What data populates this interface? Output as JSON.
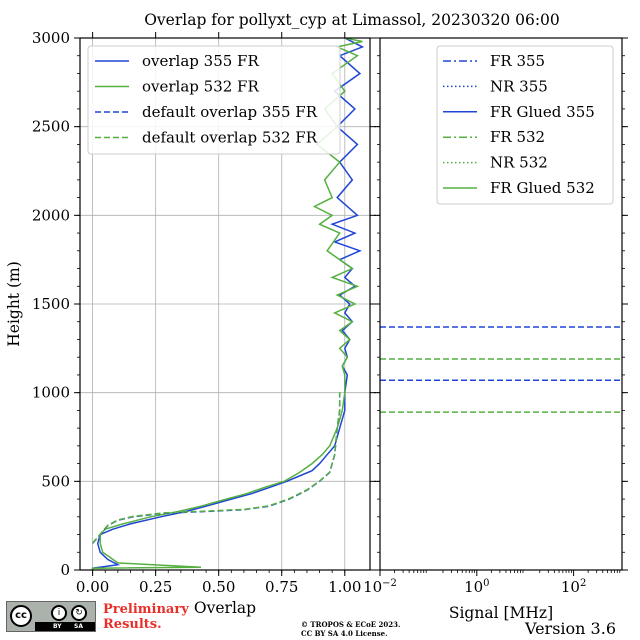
{
  "chart_data": [
    {
      "type": "line",
      "title": "Overlap for pollyxt_cyp at Limassol, 20230320 06:00",
      "xlabel": "Overlap",
      "ylabel": "Height (m)",
      "xlim": [
        -0.05,
        1.1
      ],
      "ylim": [
        0,
        3000
      ],
      "xticks": [
        "0.00",
        "0.25",
        "0.50",
        "0.75",
        "1.00"
      ],
      "yticks": [
        "0",
        "500",
        "1000",
        "1500",
        "2000",
        "2500",
        "3000"
      ],
      "grid": true,
      "legend_position": "top-left",
      "series": [
        {
          "name": "overlap 355 FR",
          "color": "#1f45d6",
          "style": "solid",
          "x": [
            0.0,
            0.0,
            0.05,
            0.1,
            0.06,
            0.03,
            0.02,
            0.03,
            0.08,
            0.15,
            0.27,
            0.37,
            0.45,
            0.55,
            0.63,
            0.71,
            0.77,
            0.82,
            0.87,
            0.9,
            0.93,
            0.96,
            0.98,
            1.0,
            1.0,
            1.01,
            0.99,
            1.01,
            1.0,
            1.02,
            0.99,
            1.03,
            1.0,
            1.02,
            0.98,
            1.04,
            1.0,
            1.03,
            0.98,
            1.06,
            0.96,
            1.04,
            0.95,
            1.05,
            0.97,
            1.03,
            0.98,
            1.05,
            0.97,
            1.04,
            0.96,
            1.06,
            0.98,
            1.07,
            1.0
          ],
          "y": [
            0,
            10,
            20,
            30,
            60,
            100,
            150,
            200,
            230,
            260,
            300,
            330,
            360,
            400,
            430,
            470,
            500,
            530,
            560,
            600,
            650,
            700,
            800,
            900,
            1000,
            1100,
            1150,
            1200,
            1250,
            1300,
            1350,
            1400,
            1450,
            1500,
            1550,
            1600,
            1650,
            1700,
            1750,
            1800,
            1850,
            1900,
            1950,
            2000,
            2100,
            2200,
            2300,
            2400,
            2500,
            2600,
            2700,
            2800,
            2900,
            2950,
            3000
          ]
        },
        {
          "name": "overlap 532 FR",
          "color": "#55b040",
          "style": "solid",
          "x": [
            0.0,
            0.0,
            0.43,
            0.1,
            0.04,
            0.03,
            0.03,
            0.05,
            0.12,
            0.23,
            0.34,
            0.43,
            0.53,
            0.61,
            0.69,
            0.76,
            0.82,
            0.87,
            0.91,
            0.94,
            0.97,
            0.99,
            1.0,
            1.0,
            0.99,
            1.01,
            0.98,
            1.02,
            0.98,
            1.03,
            0.96,
            1.04,
            0.97,
            1.05,
            0.95,
            1.03,
            0.93,
            0.98,
            0.9,
            0.95,
            0.88,
            0.95,
            0.92,
            0.98,
            0.89,
            0.97,
            0.92,
            1.0,
            0.95,
            1.05,
            0.97,
            1.07,
            1.0
          ],
          "y": [
            0,
            10,
            15,
            40,
            100,
            150,
            200,
            230,
            260,
            300,
            330,
            360,
            400,
            430,
            470,
            500,
            550,
            600,
            650,
            700,
            800,
            900,
            1000,
            1100,
            1150,
            1200,
            1250,
            1300,
            1350,
            1400,
            1450,
            1500,
            1550,
            1600,
            1650,
            1700,
            1800,
            1900,
            1950,
            2000,
            2050,
            2100,
            2200,
            2300,
            2400,
            2500,
            2600,
            2700,
            2800,
            2900,
            2950,
            2980,
            3000
          ]
        },
        {
          "name": "default overlap 355 FR",
          "color": "#1f45d6",
          "style": "dashed",
          "x": [
            0.0,
            0.03,
            0.06,
            0.1,
            0.16,
            0.28,
            0.45,
            0.6,
            0.7,
            0.78,
            0.85,
            0.9,
            0.94,
            0.96,
            0.97,
            0.98,
            0.98
          ],
          "y": [
            150,
            200,
            250,
            280,
            300,
            320,
            330,
            340,
            360,
            400,
            450,
            500,
            550,
            650,
            800,
            900,
            1000
          ]
        },
        {
          "name": "default overlap 532 FR",
          "color": "#55b040",
          "style": "dashed",
          "x": [
            0.0,
            0.03,
            0.06,
            0.1,
            0.16,
            0.28,
            0.45,
            0.6,
            0.7,
            0.78,
            0.85,
            0.9,
            0.94,
            0.96,
            0.97,
            0.98,
            0.98
          ],
          "y": [
            152,
            202,
            252,
            282,
            302,
            322,
            332,
            342,
            362,
            402,
            452,
            502,
            552,
            652,
            802,
            902,
            1002
          ]
        }
      ]
    },
    {
      "type": "line",
      "title": "",
      "xlabel": "Signal [MHz]",
      "ylabel": "",
      "xscale": "log",
      "xlim": [
        0.01,
        1000
      ],
      "ylim": [
        0,
        3000
      ],
      "xticks": [
        {
          "value": 0.01,
          "base": "10",
          "exp": "−2"
        },
        {
          "value": 1,
          "base": "10",
          "exp": "0"
        },
        {
          "value": 100,
          "base": "10",
          "exp": "2"
        }
      ],
      "grid": false,
      "legend_position": "top-right",
      "series": [
        {
          "name": "FR 355",
          "color": "#1f45d6",
          "style": "dashdot",
          "x": [],
          "y": []
        },
        {
          "name": "NR 355",
          "color": "#1f45d6",
          "style": "dotted",
          "x": [],
          "y": []
        },
        {
          "name": "FR Glued 355",
          "color": "#1f45d6",
          "style": "solid",
          "x": [],
          "y": []
        },
        {
          "name": "FR 532",
          "color": "#55b040",
          "style": "dashdot",
          "x": [],
          "y": []
        },
        {
          "name": "NR 532",
          "color": "#55b040",
          "style": "dotted",
          "x": [],
          "y": []
        },
        {
          "name": "FR Glued 532",
          "color": "#55b040",
          "style": "solid",
          "x": [],
          "y": []
        }
      ],
      "hlines": [
        {
          "y": 1370,
          "color": "#1f45d6",
          "style": "dashed"
        },
        {
          "y": 1070,
          "color": "#1f45d6",
          "style": "dashed"
        },
        {
          "y": 1190,
          "color": "#55b040",
          "style": "dashed"
        },
        {
          "y": 890,
          "color": "#55b040",
          "style": "dashed"
        }
      ]
    }
  ],
  "footer": {
    "badge_text": "cc",
    "badge_by": "BY",
    "badge_sa": "SA",
    "preliminary_line1": "Preliminary",
    "preliminary_line2": "Results.",
    "copyright_line1": "© TROPOS & ECoE 2023.",
    "copyright_line2": "CC BY SA 4.0 License.",
    "version": "Version 3.6"
  }
}
